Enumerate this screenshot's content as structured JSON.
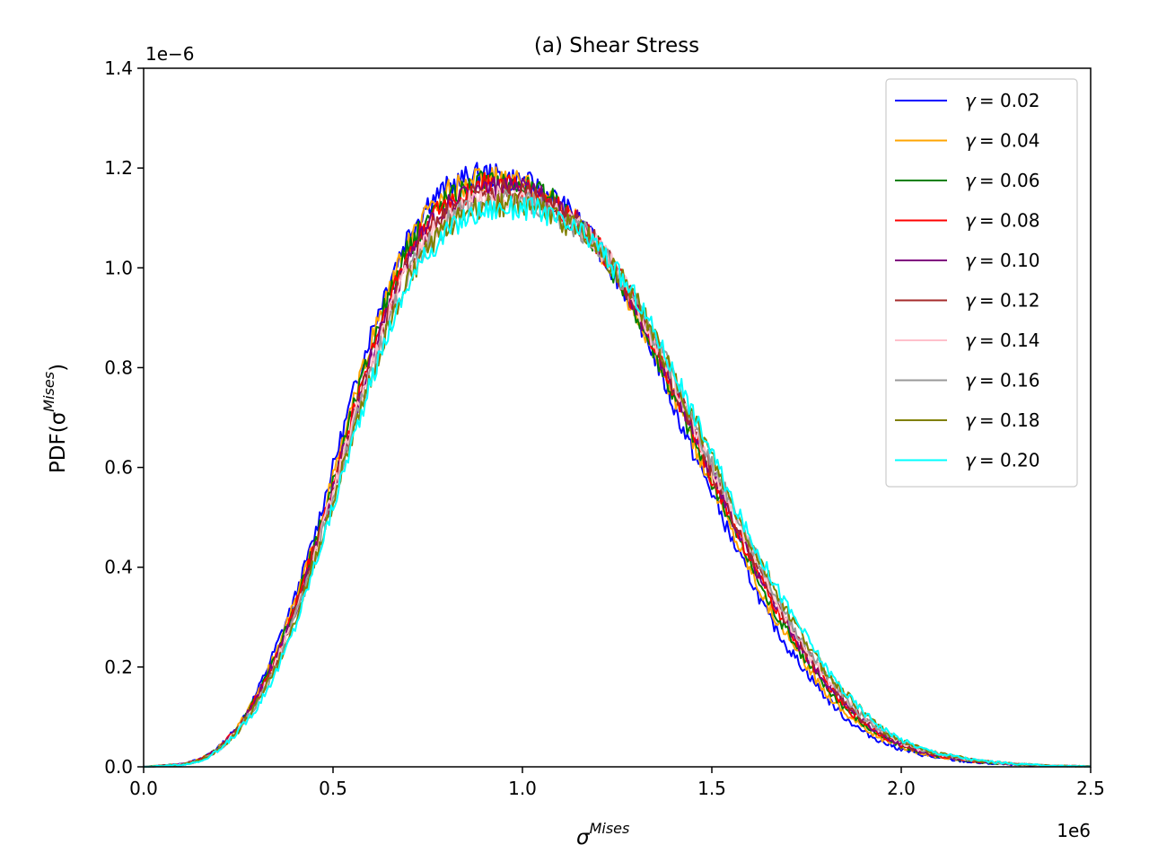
{
  "chart_data": {
    "type": "line",
    "title": "(a) Shear Stress",
    "xlabel": "σ",
    "xlabel_sup": "Mises",
    "ylabel": "PDF(σ",
    "ylabel_sup": "Mises",
    "ylabel_close": ")",
    "xlim": [
      0,
      2500000
    ],
    "ylim": [
      0,
      1.4e-06
    ],
    "x_multiplier": "1e6",
    "y_multiplier": "1e−6",
    "xticks": [
      0,
      500000,
      1000000,
      1500000,
      2000000,
      2500000
    ],
    "xtick_labels": [
      "0.0",
      "0.5",
      "1.0",
      "1.5",
      "2.0",
      "2.5"
    ],
    "yticks": [
      0,
      2e-07,
      4e-07,
      6e-07,
      8e-07,
      1e-06,
      1.2e-06,
      1.4e-06
    ],
    "ytick_labels": [
      "0.0",
      "0.2",
      "0.4",
      "0.6",
      "0.8",
      "1.0",
      "1.2",
      "1.4"
    ],
    "grid": false,
    "legend_position": "top-right",
    "x": [
      0,
      100000,
      150000,
      200000,
      250000,
      300000,
      350000,
      400000,
      450000,
      500000,
      550000,
      600000,
      650000,
      700000,
      750000,
      800000,
      850000,
      900000,
      950000,
      1000000,
      1050000,
      1100000,
      1150000,
      1200000,
      1250000,
      1300000,
      1350000,
      1400000,
      1450000,
      1500000,
      1550000,
      1600000,
      1650000,
      1700000,
      1750000,
      1800000,
      1850000,
      1900000,
      1950000,
      2000000,
      2050000,
      2100000,
      2200000,
      2300000,
      2400000,
      2500000
    ],
    "series": [
      {
        "name": "γ = 0.02",
        "legend_prefix": "γ",
        "legend_value": "= 0.02",
        "color": "#0000ff",
        "values": [
          0,
          5e-09,
          1.5e-08,
          4e-08,
          8e-08,
          1.5e-07,
          2.4e-07,
          3.4e-07,
          4.6e-07,
          6e-07,
          7.4e-07,
          8.7e-07,
          9.8e-07,
          1.07e-06,
          1.13e-06,
          1.16e-06,
          1.18e-06,
          1.19e-06,
          1.18e-06,
          1.175e-06,
          1.155e-06,
          1.13e-06,
          1.09e-06,
          1.04e-06,
          9.8e-07,
          9.1e-07,
          8.2e-07,
          7.2e-07,
          6.3e-07,
          5.5e-07,
          4.6e-07,
          3.8e-07,
          3e-07,
          2.4e-07,
          1.9e-07,
          1.4e-07,
          1e-07,
          7e-08,
          5e-08,
          3.5e-08,
          2.5e-08,
          1.7e-08,
          8e-09,
          4e-09,
          2e-09,
          1e-09
        ]
      },
      {
        "name": "γ = 0.04",
        "legend_prefix": "γ",
        "legend_value": "= 0.04",
        "color": "#ffa500",
        "values": [
          0,
          5e-09,
          1.4e-08,
          4e-08,
          8e-08,
          1.4e-07,
          2.3e-07,
          3.3e-07,
          4.5e-07,
          5.8e-07,
          7.2e-07,
          8.5e-07,
          9.6e-07,
          1.05e-06,
          1.11e-06,
          1.15e-06,
          1.17e-06,
          1.18e-06,
          1.175e-06,
          1.17e-06,
          1.15e-06,
          1.125e-06,
          1.09e-06,
          1.04e-06,
          9.8e-07,
          9.1e-07,
          8.3e-07,
          7.4e-07,
          6.5e-07,
          5.7e-07,
          4.8e-07,
          4e-07,
          3.2e-07,
          2.6e-07,
          2e-07,
          1.5e-07,
          1.1e-07,
          8e-08,
          5.5e-08,
          4e-08,
          2.8e-08,
          2e-08,
          1e-08,
          5e-09,
          2e-09,
          1e-09
        ]
      },
      {
        "name": "γ = 0.06",
        "legend_prefix": "γ",
        "legend_value": "= 0.06",
        "color": "#008000",
        "values": [
          0,
          5e-09,
          1.4e-08,
          3.8e-08,
          7.8e-08,
          1.4e-07,
          2.2e-07,
          3.2e-07,
          4.4e-07,
          5.7e-07,
          7.1e-07,
          8.4e-07,
          9.5e-07,
          1.04e-06,
          1.1e-06,
          1.14e-06,
          1.16e-06,
          1.175e-06,
          1.17e-06,
          1.165e-06,
          1.15e-06,
          1.125e-06,
          1.09e-06,
          1.04e-06,
          9.8e-07,
          9.1e-07,
          8.3e-07,
          7.4e-07,
          6.6e-07,
          5.7e-07,
          4.9e-07,
          4.1e-07,
          3.3e-07,
          2.7e-07,
          2.1e-07,
          1.6e-07,
          1.2e-07,
          8.5e-08,
          6e-08,
          4.2e-08,
          3e-08,
          2.1e-08,
          1e-08,
          5e-09,
          2e-09,
          1e-09
        ]
      },
      {
        "name": "γ = 0.08",
        "legend_prefix": "γ",
        "legend_value": "= 0.08",
        "color": "#ff0000",
        "values": [
          0,
          5e-09,
          1.4e-08,
          3.8e-08,
          7.7e-08,
          1.4e-07,
          2.2e-07,
          3.2e-07,
          4.4e-07,
          5.6e-07,
          7e-07,
          8.3e-07,
          9.4e-07,
          1.03e-06,
          1.09e-06,
          1.13e-06,
          1.15e-06,
          1.17e-06,
          1.165e-06,
          1.16e-06,
          1.145e-06,
          1.12e-06,
          1.09e-06,
          1.045e-06,
          9.9e-07,
          9.2e-07,
          8.4e-07,
          7.5e-07,
          6.7e-07,
          5.8e-07,
          5e-07,
          4.2e-07,
          3.4e-07,
          2.8e-07,
          2.2e-07,
          1.7e-07,
          1.2e-07,
          9e-08,
          6.3e-08,
          4.4e-08,
          3.1e-08,
          2.2e-08,
          1.1e-08,
          5e-09,
          2e-09,
          1e-09
        ]
      },
      {
        "name": "γ = 0.10",
        "legend_prefix": "γ",
        "legend_value": "= 0.10",
        "color": "#800080",
        "values": [
          0,
          5e-09,
          1.3e-08,
          3.7e-08,
          7.6e-08,
          1.4e-07,
          2.2e-07,
          3.1e-07,
          4.3e-07,
          5.6e-07,
          6.9e-07,
          8.2e-07,
          9.3e-07,
          1.02e-06,
          1.08e-06,
          1.12e-06,
          1.15e-06,
          1.165e-06,
          1.16e-06,
          1.155e-06,
          1.14e-06,
          1.115e-06,
          1.09e-06,
          1.045e-06,
          9.9e-07,
          9.2e-07,
          8.4e-07,
          7.6e-07,
          6.7e-07,
          5.9e-07,
          5e-07,
          4.2e-07,
          3.5e-07,
          2.8e-07,
          2.2e-07,
          1.7e-07,
          1.3e-07,
          9.2e-08,
          6.5e-08,
          4.5e-08,
          3.2e-08,
          2.3e-08,
          1.1e-08,
          5e-09,
          2e-09,
          1e-09
        ]
      },
      {
        "name": "γ = 0.12",
        "legend_prefix": "γ",
        "legend_value": "= 0.12",
        "color": "#a52a2a",
        "values": [
          0,
          4e-09,
          1.3e-08,
          3.6e-08,
          7.5e-08,
          1.3e-07,
          2.1e-07,
          3.1e-07,
          4.3e-07,
          5.5e-07,
          6.9e-07,
          8.1e-07,
          9.2e-07,
          1.01e-06,
          1.07e-06,
          1.11e-06,
          1.14e-06,
          1.16e-06,
          1.155e-06,
          1.15e-06,
          1.135e-06,
          1.11e-06,
          1.085e-06,
          1.045e-06,
          9.9e-07,
          9.3e-07,
          8.5e-07,
          7.6e-07,
          6.8e-07,
          5.9e-07,
          5.1e-07,
          4.3e-07,
          3.6e-07,
          2.9e-07,
          2.3e-07,
          1.8e-07,
          1.3e-07,
          9.5e-08,
          6.8e-08,
          4.7e-08,
          3.3e-08,
          2.4e-08,
          1.2e-08,
          6e-09,
          2e-09,
          1e-09
        ]
      },
      {
        "name": "γ = 0.14",
        "legend_prefix": "γ",
        "legend_value": "= 0.14",
        "color": "#ffc0cb",
        "values": [
          0,
          4e-09,
          1.2e-08,
          3.5e-08,
          7.4e-08,
          1.3e-07,
          2.1e-07,
          3e-07,
          4.2e-07,
          5.5e-07,
          6.8e-07,
          8e-07,
          9.1e-07,
          1e-06,
          1.06e-06,
          1.1e-06,
          1.13e-06,
          1.145e-06,
          1.145e-06,
          1.14e-06,
          1.13e-06,
          1.105e-06,
          1.08e-06,
          1.045e-06,
          9.9e-07,
          9.3e-07,
          8.5e-07,
          7.7e-07,
          6.9e-07,
          6e-07,
          5.2e-07,
          4.4e-07,
          3.6e-07,
          2.9e-07,
          2.3e-07,
          1.8e-07,
          1.4e-07,
          1e-07,
          7e-08,
          4.9e-08,
          3.4e-08,
          2.5e-08,
          1.2e-08,
          6e-09,
          2e-09,
          1e-09
        ]
      },
      {
        "name": "γ = 0.16",
        "legend_prefix": "γ",
        "legend_value": "= 0.16",
        "color": "#999999",
        "values": [
          0,
          4e-09,
          1.2e-08,
          3.4e-08,
          7.3e-08,
          1.3e-07,
          2e-07,
          3e-07,
          4.1e-07,
          5.4e-07,
          6.7e-07,
          7.9e-07,
          9e-07,
          9.9e-07,
          1.05e-06,
          1.09e-06,
          1.12e-06,
          1.11e-06,
          1.135e-06,
          1.135e-06,
          1.125e-06,
          1.1e-06,
          1.08e-06,
          1.045e-06,
          9.9e-07,
          9.3e-07,
          8.6e-07,
          7.8e-07,
          6.9e-07,
          6.1e-07,
          5.3e-07,
          4.5e-07,
          3.7e-07,
          3e-07,
          2.4e-07,
          1.9e-07,
          1.4e-07,
          1e-07,
          7.2e-08,
          5e-08,
          3.5e-08,
          2.5e-08,
          1.2e-08,
          6e-09,
          2e-09,
          1e-09
        ]
      },
      {
        "name": "γ = 0.18",
        "legend_prefix": "γ",
        "legend_value": "= 0.18",
        "color": "#808000",
        "values": [
          0,
          4e-09,
          1.2e-08,
          3.4e-08,
          7.2e-08,
          1.3e-07,
          2e-07,
          2.9e-07,
          4.1e-07,
          5.3e-07,
          6.6e-07,
          7.8e-07,
          8.9e-07,
          9.8e-07,
          1.04e-06,
          1.08e-06,
          1.11e-06,
          1.125e-06,
          1.125e-06,
          1.125e-06,
          1.12e-06,
          1.095e-06,
          1.075e-06,
          1.045e-06,
          9.9e-07,
          9.4e-07,
          8.6e-07,
          7.8e-07,
          7e-07,
          6.2e-07,
          5.3e-07,
          4.5e-07,
          3.8e-07,
          3.1e-07,
          2.5e-07,
          1.9e-07,
          1.5e-07,
          1.1e-07,
          7.5e-08,
          5.2e-08,
          3.6e-08,
          2.6e-08,
          1.3e-08,
          6e-09,
          2e-09,
          1e-09
        ]
      },
      {
        "name": "γ = 0.20",
        "legend_prefix": "γ",
        "legend_value": "= 0.20",
        "color": "#00ffff",
        "values": [
          0,
          4e-09,
          1.1e-08,
          3.3e-08,
          7.1e-08,
          1.2e-07,
          1.9e-07,
          2.8e-07,
          4e-07,
          5.2e-07,
          6.5e-07,
          7.7e-07,
          8.8e-07,
          9.7e-07,
          1.03e-06,
          1.07e-06,
          1.1e-06,
          1.115e-06,
          1.12e-06,
          1.12e-06,
          1.115e-06,
          1.09e-06,
          1.07e-06,
          1.045e-06,
          9.9e-07,
          9.4e-07,
          8.7e-07,
          7.9e-07,
          7.1e-07,
          6.3e-07,
          5.4e-07,
          4.6e-07,
          3.9e-07,
          3.2e-07,
          2.6e-07,
          2e-07,
          1.5e-07,
          1.1e-07,
          7.8e-08,
          5.5e-08,
          3.8e-08,
          2.7e-08,
          1.3e-08,
          6e-09,
          2e-09,
          1e-09
        ]
      }
    ]
  }
}
